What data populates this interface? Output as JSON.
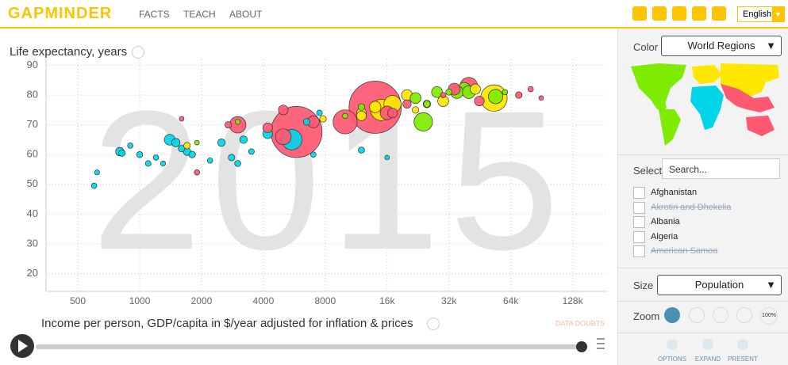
{
  "header": {
    "logo": "GAPMINDER",
    "nav": [
      "FACTS",
      "TEACH",
      "ABOUT"
    ],
    "language": "English"
  },
  "chart_data": {
    "type": "scatter",
    "ylabel": "Life expectancy, years",
    "xlabel": "Income per person, GDP/capita in $/year adjusted for inflation & prices",
    "year": "2015",
    "note": "DATA DOUBTS",
    "xscale": "log",
    "xlim": [
      350,
      190000
    ],
    "xticks": [
      500,
      1000,
      2000,
      4000,
      8000,
      {
        "value": 16000,
        "label": "16k"
      },
      {
        "value": 32000,
        "label": "32k"
      },
      {
        "value": 64000,
        "label": "64k"
      },
      {
        "value": 128000,
        "label": "128k"
      }
    ],
    "ylim": [
      14,
      92
    ],
    "yticks": [
      20,
      30,
      40,
      50,
      60,
      70,
      80,
      90
    ],
    "grid": true,
    "series": [
      {
        "color": "#00d5e9",
        "x": [
          600,
          620,
          800,
          820,
          900,
          1000,
          1100,
          1200,
          1300,
          1400,
          1500,
          1600,
          1700,
          1800,
          2200,
          2500,
          2800,
          3000,
          3200,
          3500,
          4200,
          5500,
          7000,
          6500,
          12000,
          16000,
          7500
        ],
        "values": [
          49.5,
          54,
          61,
          60.5,
          63,
          60,
          57,
          59,
          57,
          65,
          64,
          62,
          61,
          60,
          58,
          64,
          59,
          57,
          65,
          61,
          67,
          65,
          60,
          71,
          61.5,
          59,
          74
        ],
        "sizes": [
          5,
          4,
          20,
          10,
          5,
          8,
          6,
          5,
          4,
          40,
          20,
          10,
          15,
          10,
          5,
          15,
          10,
          8,
          15,
          6,
          30,
          180,
          5,
          10,
          8,
          3,
          6
        ]
      },
      {
        "color": "#ff5872",
        "x": [
          1600,
          1900,
          2700,
          3000,
          4200,
          5000,
          5800,
          5000,
          7000,
          10000,
          14000,
          16000,
          17000,
          20000,
          40000,
          34000,
          80000,
          90000,
          70000,
          45000,
          30000
        ],
        "values": [
          72,
          54,
          70,
          70,
          69,
          75,
          67.6,
          66,
          71,
          71,
          75.9,
          74,
          74,
          77,
          83,
          82,
          82,
          79,
          80,
          78,
          80
        ],
        "sizes": [
          3,
          5,
          10,
          110,
          30,
          30,
          1310,
          100,
          50,
          260,
          1370,
          70,
          30,
          20,
          127,
          50,
          5,
          3,
          10,
          30,
          5
        ]
      },
      {
        "color": "#ffe700",
        "x": [
          1700,
          7800,
          12000,
          15000,
          17000,
          20000,
          14000,
          12000,
          25000,
          22000,
          30000,
          43000,
          53000
        ],
        "values": [
          63,
          72,
          74,
          75,
          77,
          80,
          76,
          73,
          77,
          75,
          78,
          82,
          79
        ],
        "sizes": [
          10,
          10,
          30,
          200,
          120,
          40,
          45,
          30,
          15,
          10,
          40,
          35,
          320
        ]
      },
      {
        "color": "#7feb00",
        "x": [
          1900,
          3000,
          10000,
          12000,
          24000,
          22000,
          25000,
          35000,
          38000,
          54000,
          40000,
          60000,
          32000,
          28000
        ],
        "values": [
          64,
          71,
          73,
          76,
          71,
          79,
          77,
          81,
          82,
          79.5,
          81,
          81,
          81,
          81
        ],
        "sizes": [
          3,
          4,
          5,
          10,
          143,
          40,
          10,
          60,
          65,
          80,
          60,
          5,
          8,
          40
        ]
      }
    ]
  },
  "panel": {
    "color_label": "Color",
    "color_value": "World Regions",
    "select_label": "Select",
    "search_placeholder": "Search...",
    "countries": [
      "Afghanistan",
      "Akrotiri and Dhekelia",
      "Albania",
      "Algeria",
      "American Samoa"
    ],
    "size_label": "Size",
    "size_value": "Population",
    "zoom_label": "Zoom",
    "zoom_reset": "100%",
    "buttons": [
      "OPTIONS",
      "EXPAND",
      "PRESENT"
    ]
  }
}
